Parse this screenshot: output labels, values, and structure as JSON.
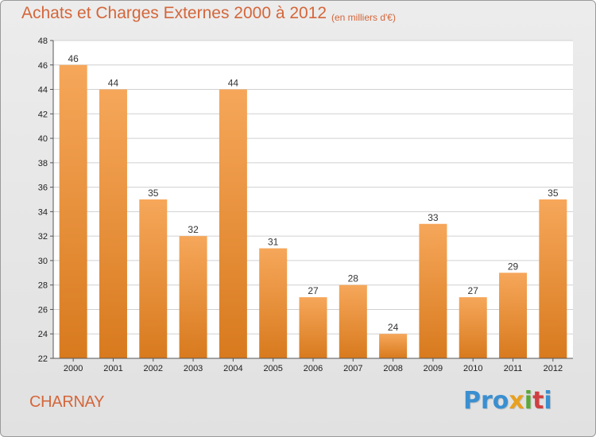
{
  "header": {
    "title": "Achats et Charges Externes 2000 à 2012",
    "subtitle": "(en milliers d'€)"
  },
  "footer": {
    "commune": "CHARNAY",
    "logo_parts": [
      {
        "text": "Pro",
        "color": "#3a8fd0"
      },
      {
        "text": "x",
        "color": "#e8a020"
      },
      {
        "text": "i",
        "color": "#5aa83a"
      },
      {
        "text": "t",
        "color": "#d04040"
      },
      {
        "text": "i",
        "color": "#3a8fd0"
      }
    ]
  },
  "colors": {
    "bar_top": "#f6a75a",
    "bar_bottom": "#d87a1e",
    "accent": "#d4663a"
  },
  "chart_data": {
    "type": "bar",
    "title": "Achats et Charges Externes 2000 à 2012",
    "subtitle": "(en milliers d'€)",
    "categories": [
      "2000",
      "2001",
      "2002",
      "2003",
      "2004",
      "2005",
      "2006",
      "2007",
      "2008",
      "2009",
      "2010",
      "2011",
      "2012"
    ],
    "values": [
      46,
      44,
      35,
      32,
      44,
      31,
      27,
      28,
      24,
      33,
      27,
      29,
      35
    ],
    "ylim": [
      22,
      48
    ],
    "yticks": [
      22,
      24,
      26,
      28,
      30,
      32,
      34,
      36,
      38,
      40,
      42,
      44,
      46,
      48
    ],
    "grid": true,
    "data_labels": true
  }
}
